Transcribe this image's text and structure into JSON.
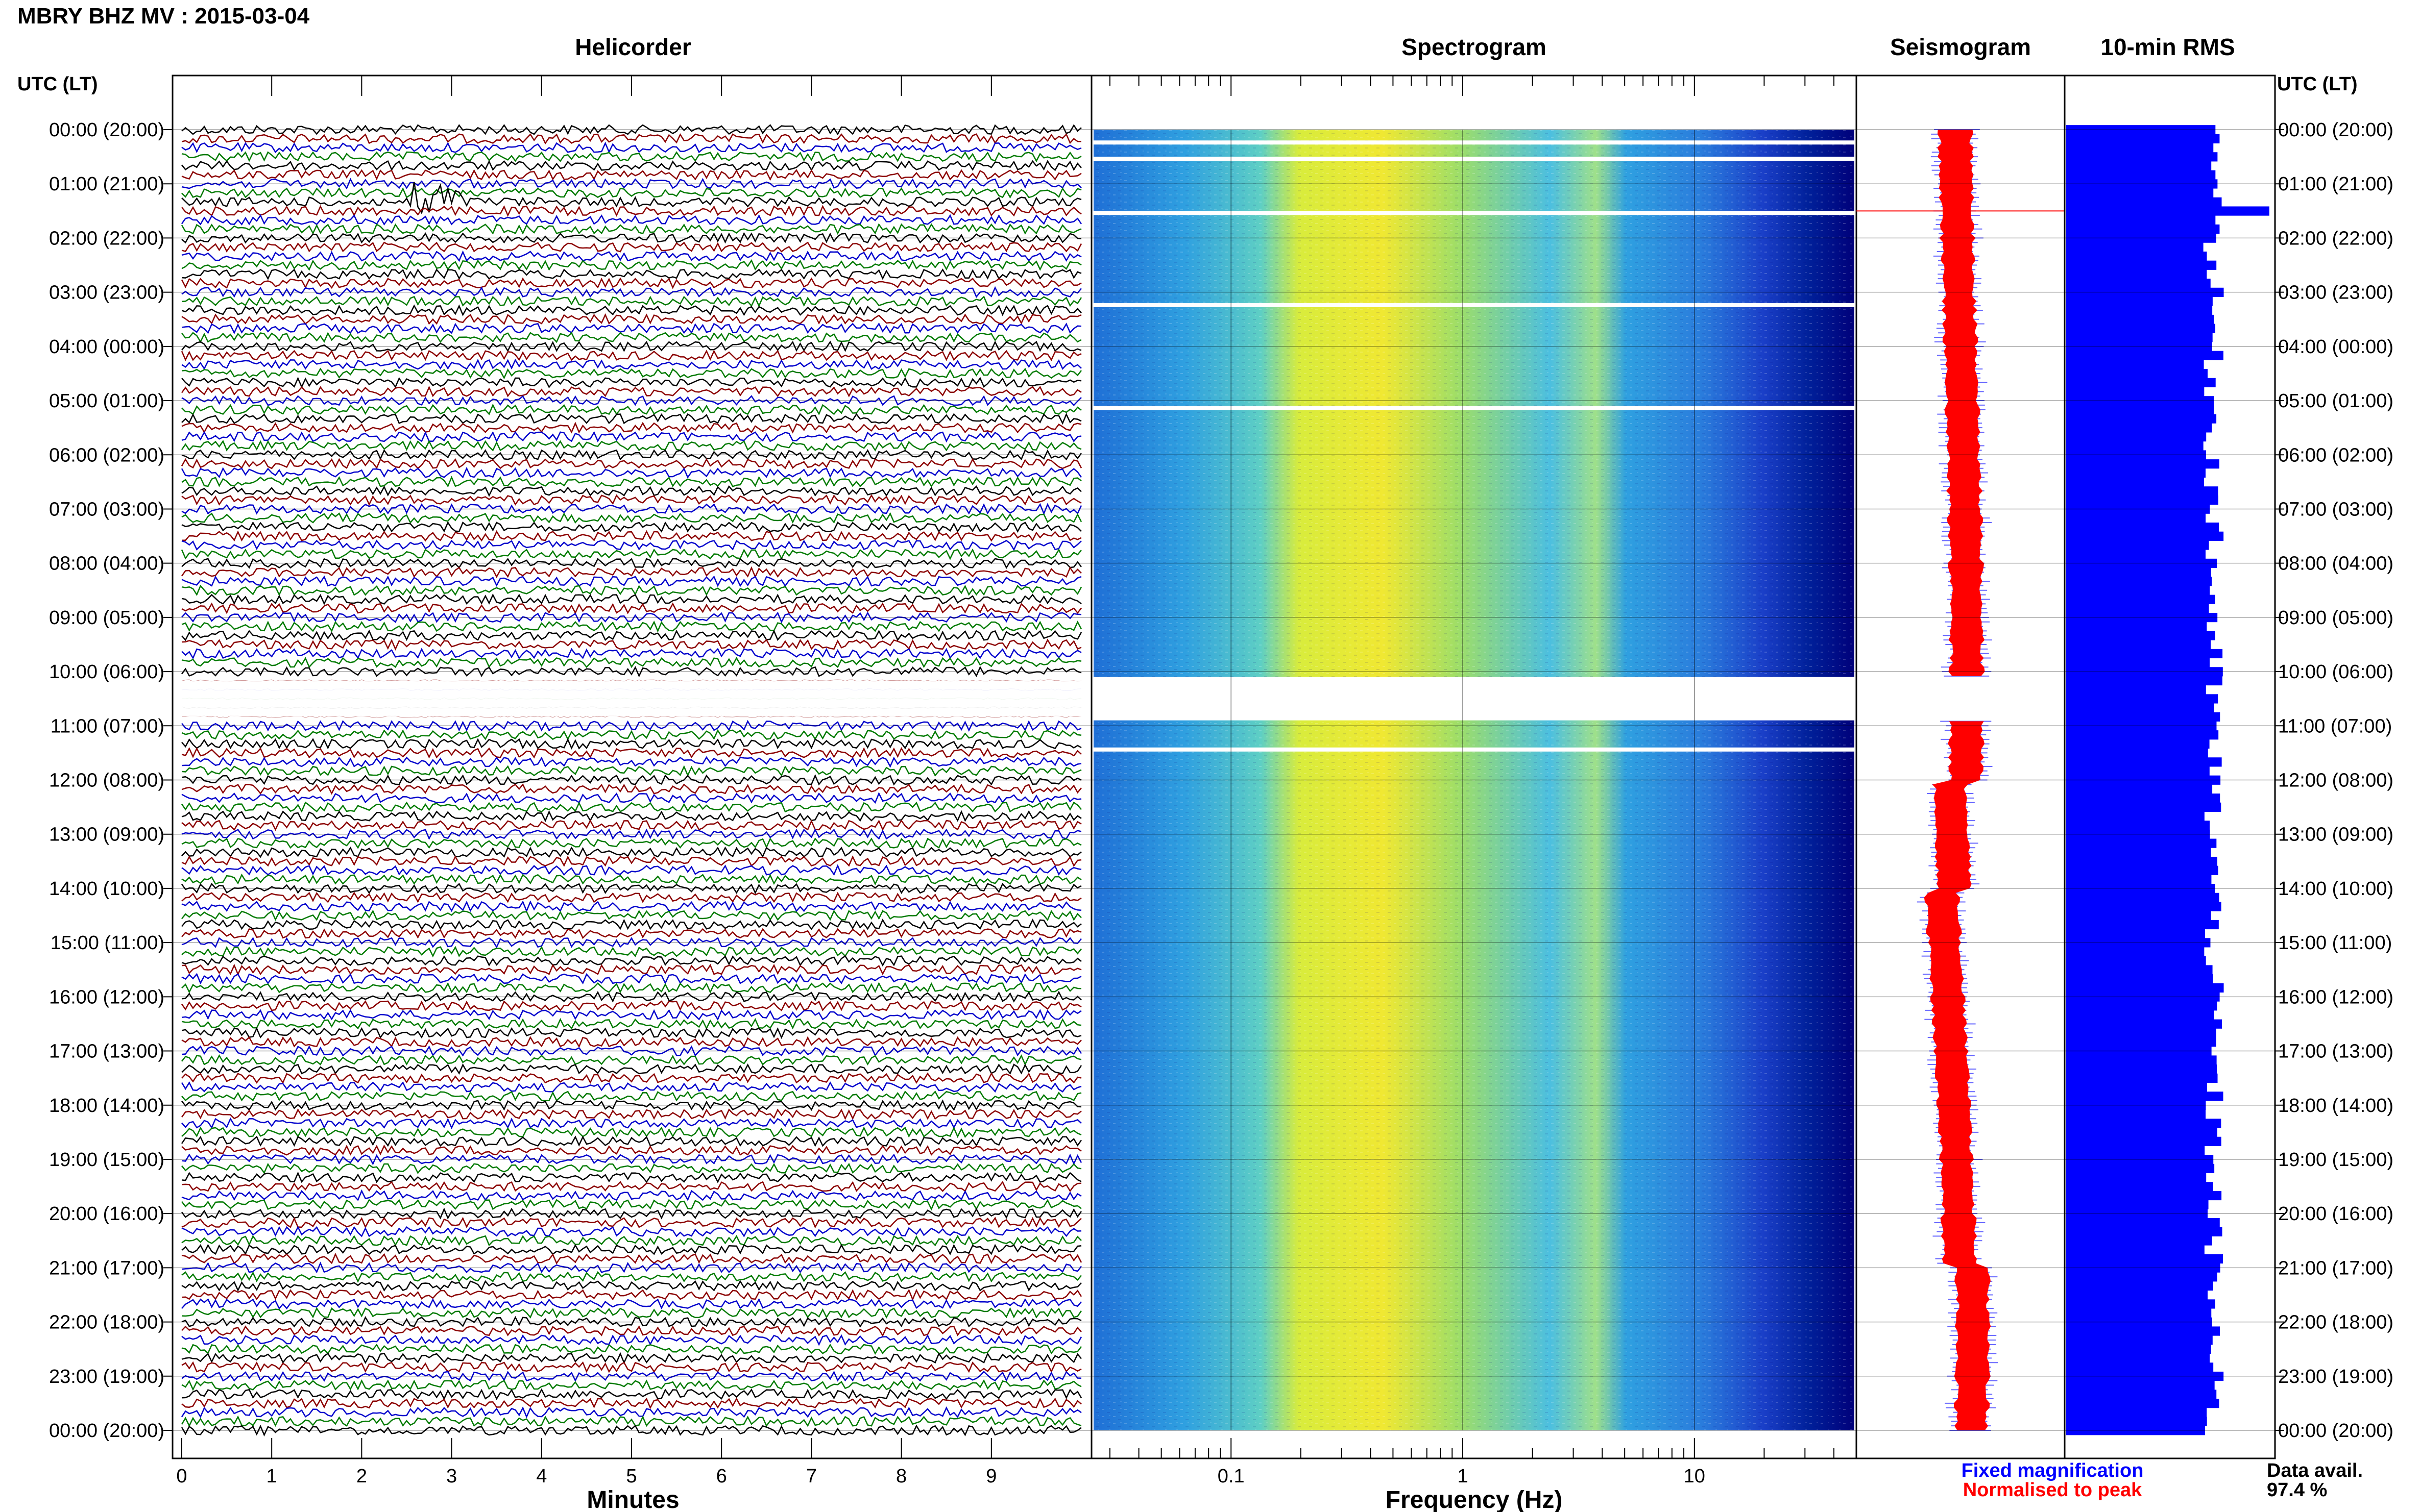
{
  "header": {
    "station_title": "MBRY BHZ MV : 2015-03-04",
    "utc_lt_label": "UTC (LT)"
  },
  "panels": {
    "helicorder": "Helicorder",
    "spectrogram": "Spectrogram",
    "seismogram": "Seismogram",
    "rms": "10-min RMS"
  },
  "footer": {
    "fixed_magnification": "Fixed magnification",
    "normalised_to_peak": "Normalised to peak",
    "data_avail_label": "Data avail.",
    "data_avail_value": "97.4 %"
  },
  "colors": {
    "helicorder_traces": [
      "#000000",
      "#8b0000",
      "#0000cc",
      "#007a00"
    ],
    "fixed_magnification": "#0000ff",
    "normalised_to_peak": "#ff0000",
    "rms_bar": "#0000ff",
    "spectrogram_scale": [
      "#00007a",
      "#1a4bd6",
      "#28a8e0",
      "#6fd6b0",
      "#d8ec3c",
      "#f3ea32"
    ]
  },
  "chart_data": [
    {
      "type": "line",
      "panel": "helicorder",
      "title": "Helicorder",
      "xlabel": "Minutes",
      "x_ticks": [
        "0",
        "1",
        "2",
        "3",
        "4",
        "5",
        "6",
        "7",
        "8",
        "9"
      ],
      "xlim": [
        0,
        10
      ],
      "ylabel": "UTC (LT)",
      "y_ticks": [
        "00:00 (20:00)",
        "01:00 (21:00)",
        "02:00 (22:00)",
        "03:00 (23:00)",
        "04:00 (00:00)",
        "05:00 (01:00)",
        "06:00 (02:00)",
        "07:00 (03:00)",
        "08:00 (04:00)",
        "09:00 (05:00)",
        "10:00 (06:00)",
        "11:00 (07:00)",
        "12:00 (08:00)",
        "13:00 (09:00)",
        "14:00 (10:00)",
        "15:00 (11:00)",
        "16:00 (12:00)",
        "17:00 (13:00)",
        "18:00 (14:00)",
        "19:00 (15:00)",
        "20:00 (16:00)",
        "21:00 (17:00)",
        "22:00 (18:00)",
        "23:00 (19:00)",
        "00:00 (20:00)"
      ],
      "trace_minutes": 10,
      "trace_count": 144,
      "gaps_utc_hours": [
        [
          10.1,
          10.9
        ]
      ],
      "events_utc_hours": [
        1.3
      ]
    },
    {
      "type": "heatmap",
      "panel": "spectrogram",
      "title": "Spectrogram",
      "xlabel": "Frequency (Hz)",
      "x_scale": "log",
      "x_ticks": [
        "0.1",
        "1",
        "10"
      ],
      "xlim": [
        0.025,
        50
      ],
      "ylim_utc_hours": [
        0,
        24
      ],
      "peak_energy_hz": [
        0.15,
        0.6
      ],
      "gaps_utc_hours": [
        [
          10.1,
          10.9
        ],
        [
          0.2,
          0.25
        ],
        [
          0.5,
          0.55
        ],
        [
          1.5,
          1.55
        ],
        [
          3.2,
          3.25
        ],
        [
          5.1,
          5.15
        ],
        [
          11.4,
          11.45
        ]
      ]
    },
    {
      "type": "line",
      "panel": "seismogram",
      "title": "Seismogram",
      "series": [
        {
          "name": "Fixed magnification",
          "color": "#0000ff"
        },
        {
          "name": "Normalised to peak",
          "color": "#ff0000"
        }
      ],
      "ylim_utc_hours": [
        0,
        24
      ],
      "gaps_utc_hours": [
        [
          10.1,
          10.9
        ]
      ],
      "spike_utc_hours": [
        1.5
      ]
    },
    {
      "type": "bar",
      "panel": "rms",
      "title": "10-min RMS",
      "orientation": "horizontal",
      "bin_minutes": 10,
      "ylim_utc_hours": [
        0,
        24
      ],
      "peak_bin_utc_hours": 1.5,
      "relative_values_first_hours": [
        0.72,
        0.74,
        0.71,
        0.73,
        0.7,
        0.72,
        0.73,
        0.71,
        0.75,
        0.98,
        0.72,
        0.74
      ]
    }
  ]
}
